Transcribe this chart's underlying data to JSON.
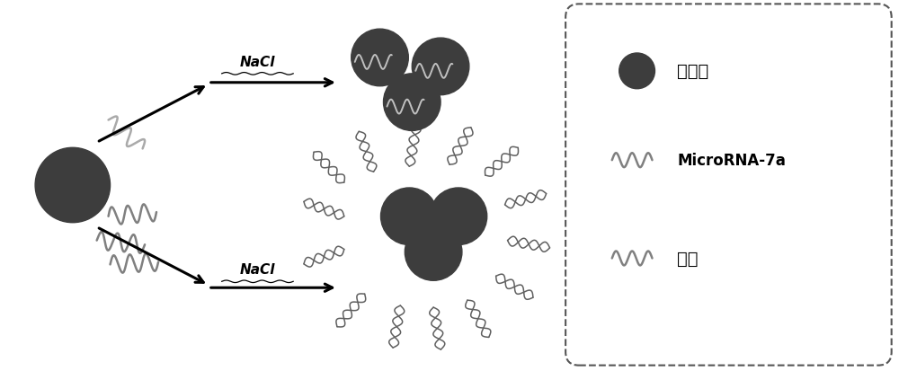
{
  "bg_color": "#ffffff",
  "dark_color": "#3d3d3d",
  "gray_color": "#808080",
  "light_gray": "#aaaaaa",
  "figure_size": [
    10.0,
    4.14
  ],
  "dpi": 100,
  "legend_labels": [
    "纳米金",
    "MicroRNA-7a",
    "探针"
  ],
  "nacl_label": "NaCl"
}
